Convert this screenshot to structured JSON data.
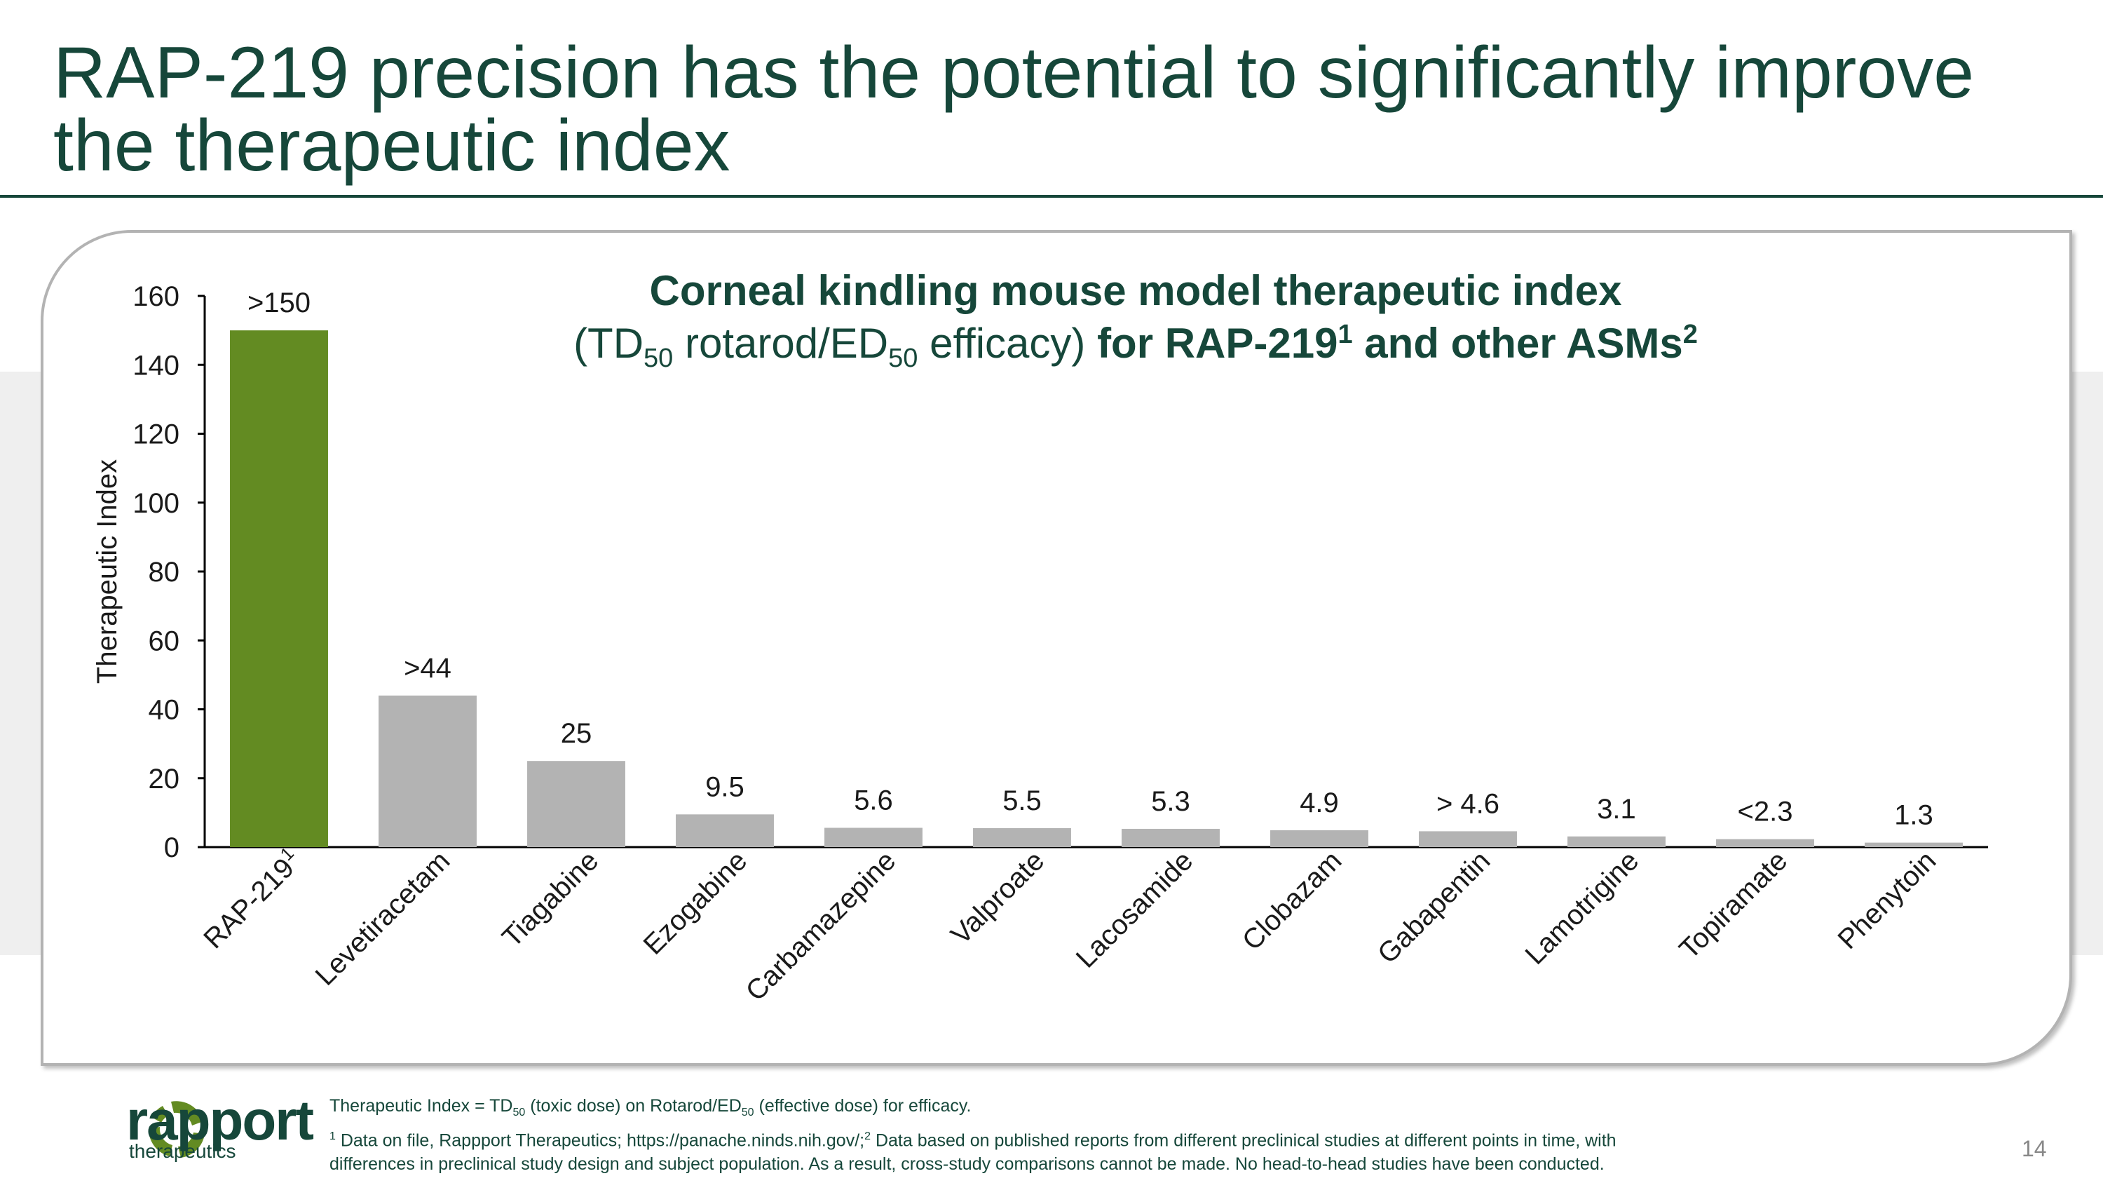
{
  "page": {
    "title": "RAP-219 precision has the potential to significantly improve the therapeutic index",
    "page_number": "14"
  },
  "chart_heading": {
    "title": "Corneal kindling mouse model therapeutic index",
    "sub_open": "(TD",
    "sub_50a": "50",
    "sub_mid": " rotarod/ED",
    "sub_50b": "50",
    "sub_eff": " efficacy) ",
    "sub_bold": "for RAP-219",
    "sub_sup1": "1",
    "sub_bold2": " and other ASMs",
    "sub_sup2": "2"
  },
  "chart_data": {
    "type": "bar",
    "title": "Corneal kindling mouse model therapeutic index",
    "ylabel": "Therapeutic Index",
    "xlabel": "",
    "ylim": [
      0,
      160
    ],
    "yticks": [
      0,
      20,
      40,
      60,
      80,
      100,
      120,
      140,
      160
    ],
    "categories": [
      "RAP-219",
      "Levetiracetam",
      "Tiagabine",
      "Ezogabine",
      "Carbamazepine",
      "Valproate",
      "Lacosamide",
      "Clobazam",
      "Gabapentin",
      "Lamotrigine",
      "Topiramate",
      "Phenytoin"
    ],
    "category_superscripts": [
      "1",
      "",
      "",
      "",
      "",
      "",
      "",
      "",
      "",
      "",
      "",
      ""
    ],
    "values": [
      150,
      44,
      25,
      9.5,
      5.6,
      5.5,
      5.3,
      4.9,
      4.6,
      3.1,
      2.3,
      1.3
    ],
    "data_labels": [
      ">150",
      ">44",
      "25",
      "9.5",
      "5.6",
      "5.5",
      "5.3",
      "4.9",
      "> 4.6",
      "3.1",
      "<2.3",
      "1.3"
    ],
    "highlight_color": "#638b22",
    "bar_color": "#b3b3b3",
    "grid": false
  },
  "logo": {
    "word": "rapport",
    "sub": "therapeutics"
  },
  "footnotes": {
    "l1_a": "Therapeutic Index = TD",
    "l1_s1": "50",
    "l1_b": " (toxic dose) on Rotarod/ED",
    "l1_s2": "50",
    "l1_c": " (effective dose) for efficacy.",
    "l2_sup1": "1",
    "l2_a": " Data on file, Rappport Therapeutics; https://panache.ninds.nih.gov/;",
    "l2_sup2": "2",
    "l2_b": " Data based on published reports from different preclinical studies at different points in time, with",
    "l3": "differences in preclinical study design and subject population. As a result, cross-study comparisons cannot be made. No head-to-head studies have been conducted."
  },
  "colors": {
    "brand_dark_green": "#16473a",
    "accent_green": "#638b22",
    "neutral_bar": "#b3b3b3"
  }
}
